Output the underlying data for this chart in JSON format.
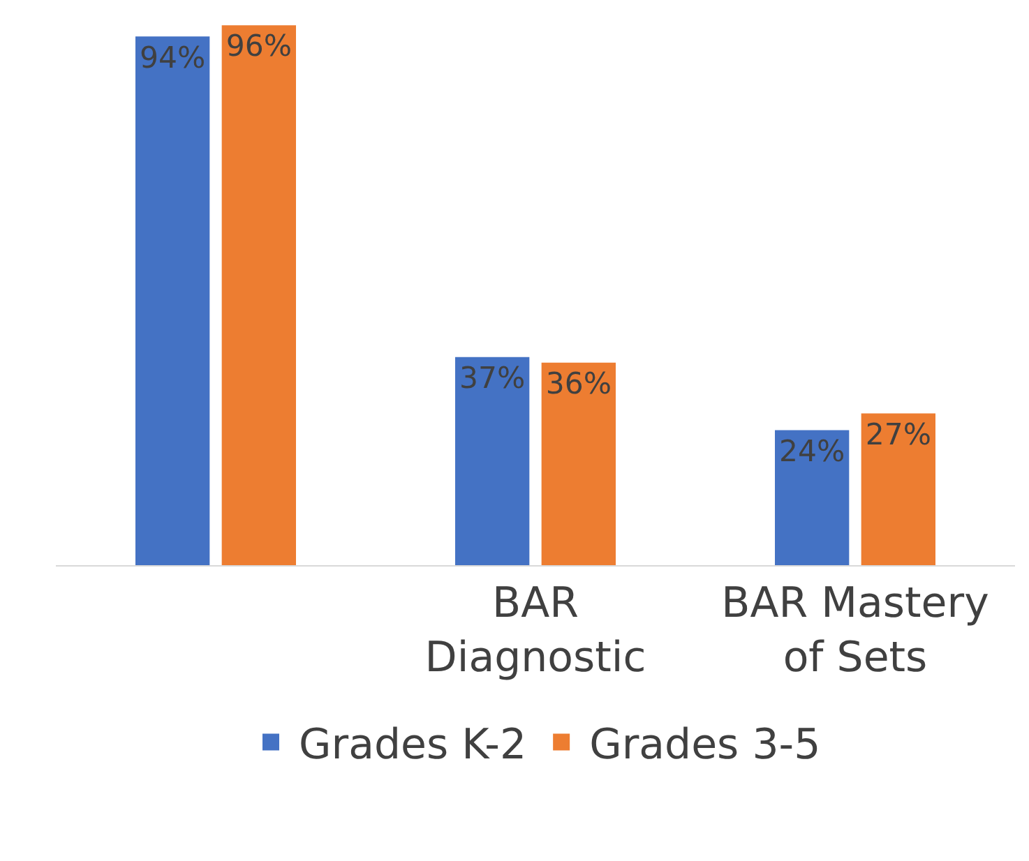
{
  "chart_data": {
    "type": "bar",
    "categories": [
      null,
      "BAR Diagnostic",
      "BAR Mastery of Sets"
    ],
    "series": [
      {
        "name": "Grades K-2",
        "color": "#4472c4",
        "values": [
          94,
          37,
          24
        ],
        "value_labels": [
          "94%",
          "37%",
          "24%"
        ]
      },
      {
        "name": "Grades 3-5",
        "color": "#ed7d31",
        "values": [
          96,
          36,
          27
        ],
        "value_labels": [
          "96%",
          "36%",
          "27%"
        ]
      }
    ],
    "ylim": [
      0,
      100
    ],
    "tick_labels": "x",
    "legend": "bottom"
  }
}
